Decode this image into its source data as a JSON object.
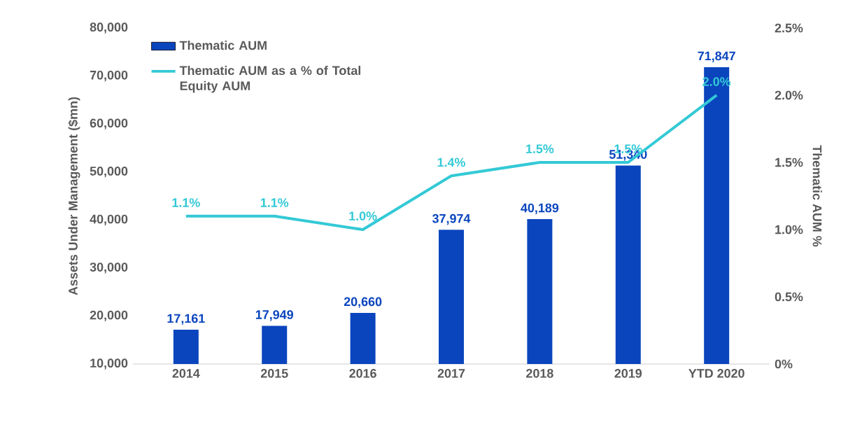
{
  "chart_data": {
    "type": "bar",
    "categories": [
      "2014",
      "2015",
      "2016",
      "2017",
      "2018",
      "2019",
      "YTD 2020"
    ],
    "series": [
      {
        "name": "Thematic AUM",
        "color": "#0a45be",
        "values": [
          17161,
          17949,
          20660,
          37974,
          40189,
          51340,
          71847
        ],
        "value_labels": [
          "17,161",
          "17,949",
          "20,660",
          "37,974",
          "40,189",
          "51,340",
          "71,847"
        ]
      },
      {
        "name": "Thematic AUM as a % of Total Equity AUM",
        "type": "line",
        "axis": "y2",
        "color": "#33c9d6",
        "values": [
          1.1,
          1.1,
          1.0,
          1.4,
          1.5,
          1.5,
          2.0
        ],
        "value_labels": [
          "1.1%",
          "1.1%",
          "1.0%",
          "1.4%",
          "1.5%",
          "1.5%",
          "2.0%"
        ]
      }
    ],
    "ylabel": "Assets Under Management ($mn)",
    "y2label": "Thematic AUM %",
    "ylim": [
      10000,
      80000
    ],
    "yticks": [
      {
        "value": 10000,
        "label": "10,000"
      },
      {
        "value": 20000,
        "label": "20,000"
      },
      {
        "value": 30000,
        "label": "30,000"
      },
      {
        "value": 40000,
        "label": "40,000"
      },
      {
        "value": 50000,
        "label": "50,000"
      },
      {
        "value": 60000,
        "label": "60,000"
      },
      {
        "value": 70000,
        "label": "70,000"
      },
      {
        "value": 80000,
        "label": "80,000"
      }
    ],
    "y2lim": [
      0,
      2.5
    ],
    "y2ticks": [
      {
        "value": 0,
        "label": "0%"
      },
      {
        "value": 0.5,
        "label": "0.5%"
      },
      {
        "value": 1.0,
        "label": "1.0%"
      },
      {
        "value": 1.5,
        "label": "1.5%"
      },
      {
        "value": 2.0,
        "label": "2.0%"
      },
      {
        "value": 2.5,
        "label": "2.5%"
      }
    ],
    "legend": "top left",
    "grid": false,
    "marker": "none",
    "line_style": "solid"
  }
}
